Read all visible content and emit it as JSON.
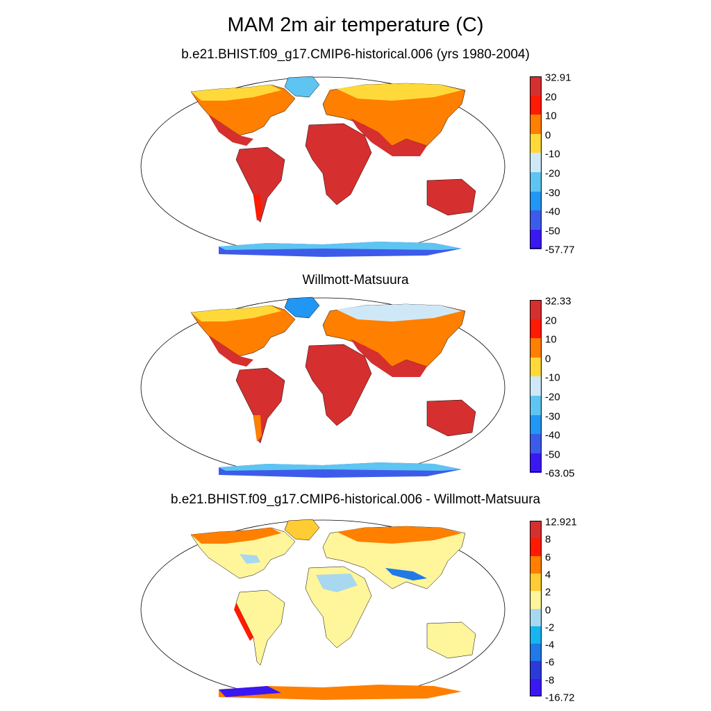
{
  "title": "MAM 2m air temperature (C)",
  "panels": [
    {
      "id": "model",
      "title": "b.e21.BHIST.f09_g17.CMIP6-historical.006 (yrs 1980-2004)",
      "colorbar": {
        "labels": [
          "32.91",
          "20",
          "10",
          "0",
          "-10",
          "-20",
          "-30",
          "-40",
          "-50",
          "-57.77"
        ],
        "colors": [
          "#d62f2f",
          "#ff1a00",
          "#ff7f00",
          "#ffd93a",
          "#cfe8f8",
          "#5ec4f2",
          "#2196f3",
          "#3d5bea",
          "#3a18f2"
        ]
      }
    },
    {
      "id": "obs",
      "title": "Willmott-Matsuura",
      "colorbar": {
        "labels": [
          "32.33",
          "20",
          "10",
          "0",
          "-10",
          "-20",
          "-30",
          "-40",
          "-50",
          "-63.05"
        ],
        "colors": [
          "#d62f2f",
          "#ff1a00",
          "#ff7f00",
          "#ffd93a",
          "#cfe8f8",
          "#5ec4f2",
          "#2196f3",
          "#3d5bea",
          "#3a18f2"
        ]
      }
    },
    {
      "id": "diff",
      "title": "b.e21.BHIST.f09_g17.CMIP6-historical.006 - Willmott-Matsuura",
      "colorbar": {
        "labels": [
          "12.921",
          "8",
          "6",
          "4",
          "2",
          "0",
          "-2",
          "-4",
          "-6",
          "-8",
          "-16.72"
        ],
        "colors": [
          "#d62f2f",
          "#ff1a00",
          "#ff7f00",
          "#ffcc33",
          "#fff59a",
          "#a8d8f0",
          "#18b4ef",
          "#2079e6",
          "#2c3ad9",
          "#3a18f2"
        ]
      }
    }
  ]
}
